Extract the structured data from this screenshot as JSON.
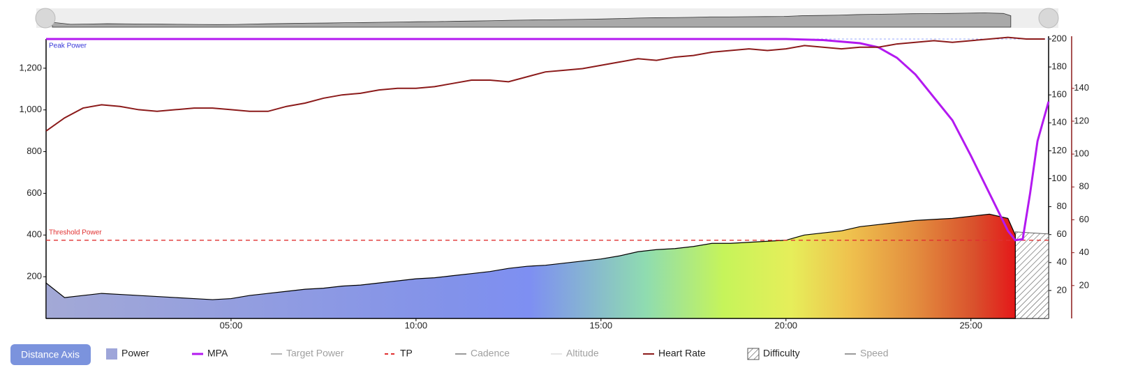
{
  "button": "Distance Axis",
  "chart_data": {
    "type": "line",
    "xlim": [
      0,
      27.1
    ],
    "xticks": [
      {
        "value": 5,
        "label": "05:00"
      },
      {
        "value": 10,
        "label": "10:00"
      },
      {
        "value": 15,
        "label": "15:00"
      },
      {
        "value": 20,
        "label": "20:00"
      },
      {
        "value": 25,
        "label": "25:00"
      }
    ],
    "ylim": [
      0,
      1340
    ],
    "yticks": [
      200,
      400,
      600,
      800,
      {
        "value": 1000,
        "label": "1,000"
      },
      {
        "value": 1200,
        "label": "1,200"
      }
    ],
    "y2lim": [
      0,
      200
    ],
    "y2ticks": [
      20,
      40,
      60,
      80,
      100,
      120,
      140,
      160,
      180,
      200
    ],
    "y3lim": [
      0,
      170
    ],
    "y3ticks": [
      20,
      40,
      60,
      80,
      100,
      120,
      140
    ],
    "annotations": [
      {
        "text": "Peak Power",
        "value": 1340,
        "color": "#3535d8"
      },
      {
        "text": "Threshold Power",
        "value": 375,
        "color": "#e03030"
      }
    ],
    "series": [
      {
        "name": "Power",
        "style": "area",
        "axis": "y",
        "color": "#000000",
        "x": [
          0,
          0.5,
          1,
          1.5,
          2,
          2.5,
          3,
          3.5,
          4,
          4.5,
          5,
          5.5,
          6,
          6.5,
          7,
          7.5,
          8,
          8.5,
          9,
          9.5,
          10,
          10.5,
          11,
          11.5,
          12,
          12.5,
          13,
          13.5,
          14,
          14.5,
          15,
          15.5,
          16,
          16.5,
          17,
          17.5,
          18,
          18.5,
          19,
          19.5,
          20,
          20.5,
          21,
          21.5,
          22,
          22.5,
          23,
          23.5,
          24,
          24.5,
          25,
          25.5,
          26,
          26.2
        ],
        "values": [
          170,
          100,
          110,
          120,
          115,
          110,
          105,
          100,
          95,
          90,
          95,
          110,
          120,
          130,
          140,
          145,
          155,
          160,
          170,
          180,
          190,
          195,
          205,
          215,
          225,
          240,
          250,
          255,
          265,
          275,
          285,
          300,
          320,
          330,
          335,
          345,
          360,
          360,
          365,
          370,
          375,
          400,
          410,
          420,
          440,
          450,
          460,
          470,
          475,
          480,
          490,
          500,
          480,
          400
        ]
      },
      {
        "name": "MPA",
        "style": "line",
        "axis": "y",
        "color": "#b319f0",
        "x": [
          0,
          20,
          21,
          22,
          22.5,
          23,
          23.5,
          24,
          24.5,
          25,
          25.5,
          26,
          26.2,
          26.4,
          26.6,
          26.8,
          27.1
        ],
        "values": [
          1340,
          1340,
          1335,
          1320,
          1300,
          1250,
          1170,
          1060,
          950,
          780,
          600,
          420,
          375,
          380,
          600,
          850,
          1040
        ]
      },
      {
        "name": "Target Power",
        "style": "line",
        "color": "#b5b5b5",
        "visible": false
      },
      {
        "name": "TP",
        "style": "dash",
        "axis": "y",
        "color": "#e03030",
        "value": 375
      },
      {
        "name": "Cadence",
        "style": "line",
        "color": "#9a9a9a",
        "visible": false
      },
      {
        "name": "Altitude",
        "style": "line",
        "color": "#e6e6e6",
        "visible": false
      },
      {
        "name": "Heart Rate",
        "style": "line",
        "axis": "y3",
        "color": "#8b1a1a",
        "x": [
          0,
          0.5,
          1,
          1.5,
          2,
          2.5,
          3,
          3.5,
          4,
          4.5,
          5,
          5.5,
          6,
          6.5,
          7,
          7.5,
          8,
          8.5,
          9,
          9.5,
          10,
          10.5,
          11,
          11.5,
          12,
          12.5,
          13,
          13.5,
          14,
          14.5,
          15,
          15.5,
          16,
          16.5,
          17,
          17.5,
          18,
          18.5,
          19,
          19.5,
          20,
          20.5,
          21,
          21.5,
          22,
          22.5,
          23,
          23.5,
          24,
          24.5,
          25,
          25.5,
          26,
          26.5,
          27
        ],
        "values": [
          114,
          122,
          128,
          130,
          129,
          127,
          126,
          127,
          128,
          128,
          127,
          126,
          126,
          129,
          131,
          134,
          136,
          137,
          139,
          140,
          140,
          141,
          143,
          145,
          145,
          144,
          147,
          150,
          151,
          152,
          154,
          156,
          158,
          157,
          159,
          160,
          162,
          163,
          164,
          163,
          164,
          166,
          165,
          164,
          165,
          165,
          167,
          168,
          169,
          168,
          169,
          170,
          171,
          170,
          170
        ]
      },
      {
        "name": "Difficulty",
        "style": "hatch",
        "axis": "y",
        "color": "#555555",
        "x": [
          26.2,
          27.1
        ],
        "values": [
          415,
          405
        ]
      },
      {
        "name": "Speed",
        "style": "line",
        "color": "#9a9a9a",
        "visible": false
      }
    ]
  }
}
